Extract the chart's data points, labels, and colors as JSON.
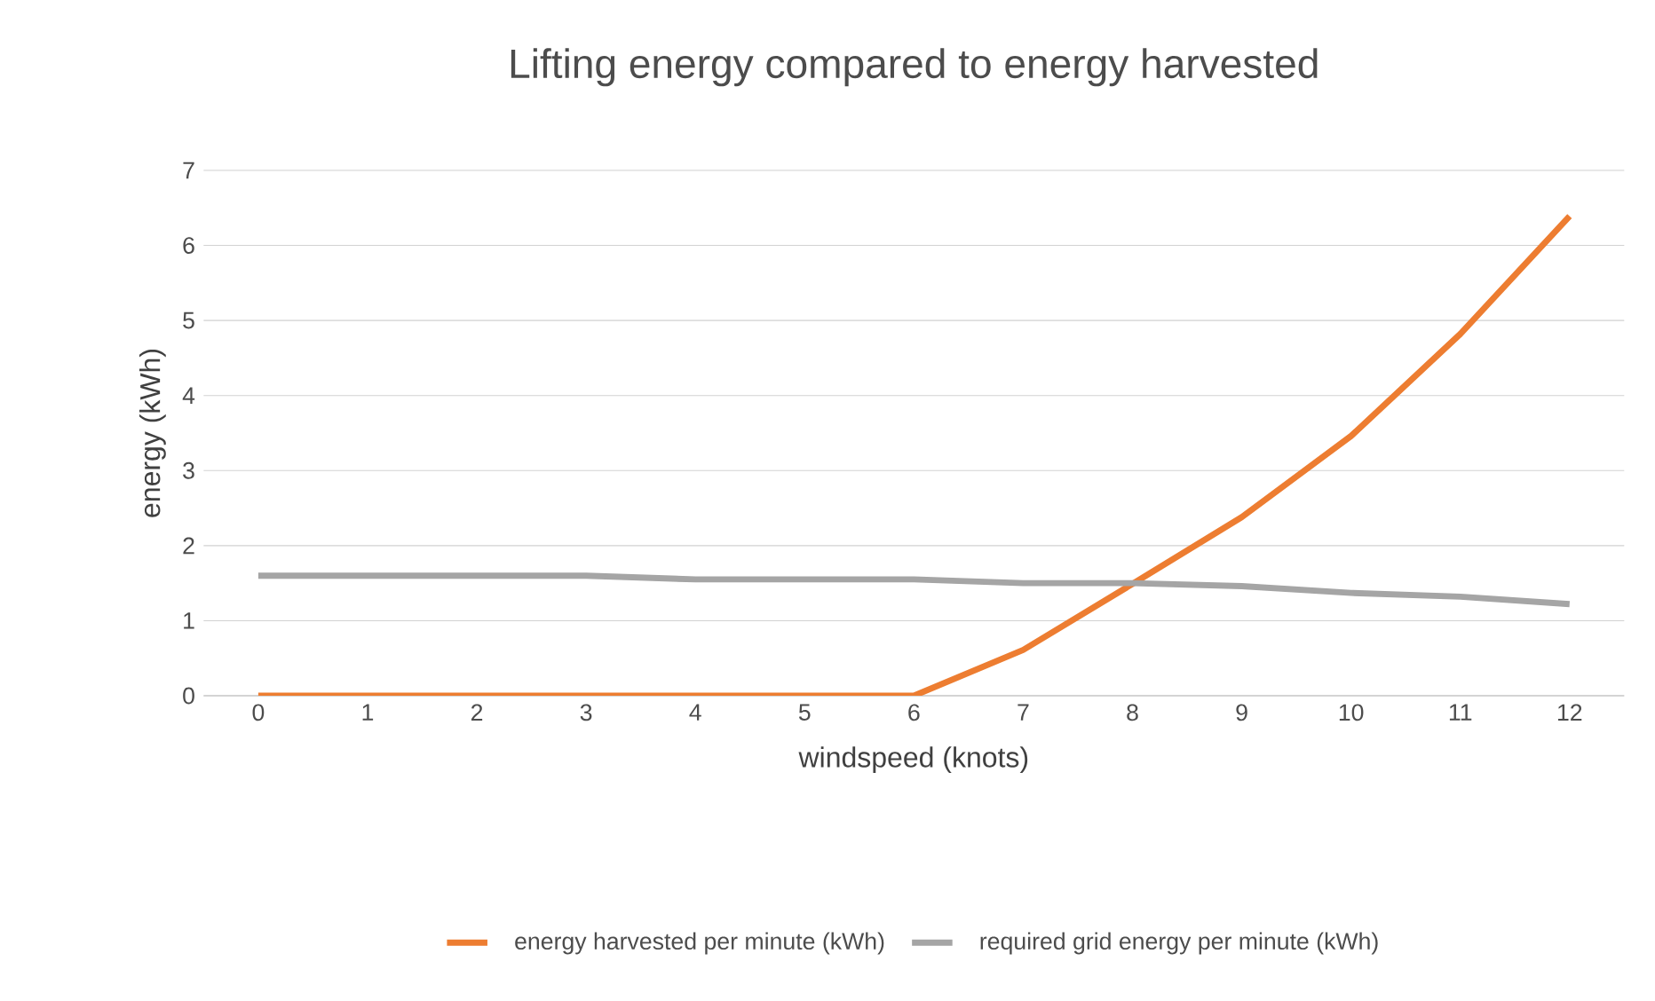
{
  "chart_data": {
    "type": "line",
    "title": "Lifting energy compared to energy harvested",
    "xlabel": "windspeed (knots)",
    "ylabel": "energy (kWh)",
    "categories": [
      "0",
      "1",
      "2",
      "3",
      "4",
      "5",
      "6",
      "7",
      "8",
      "9",
      "10",
      "11",
      "12"
    ],
    "series": [
      {
        "name": "energy harvested per minute (kWh)",
        "color": "#ed7d31",
        "values": [
          0,
          0,
          0,
          0,
          0,
          0,
          0,
          0.61,
          1.49,
          2.38,
          3.46,
          4.82,
          6.39
        ]
      },
      {
        "name": "required grid energy per minute (kWh)",
        "color": "#a5a5a5",
        "values": [
          1.6,
          1.6,
          1.6,
          1.6,
          1.55,
          1.55,
          1.55,
          1.5,
          1.5,
          1.46,
          1.37,
          1.32,
          1.22
        ]
      }
    ],
    "ylim": [
      0,
      7
    ],
    "yticks": [
      0,
      1,
      2,
      3,
      4,
      5,
      6,
      7
    ],
    "grid": "y",
    "legend": "bottom",
    "marker": "none",
    "line_style": "solid"
  }
}
